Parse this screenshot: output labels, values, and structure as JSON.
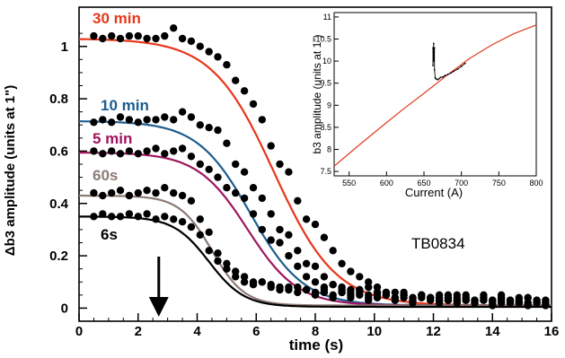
{
  "colors": {
    "series_30min": "#e8371a",
    "series_10min": "#1c5d8f",
    "series_5min": "#a0145e",
    "series_60s": "#8c7b74",
    "series_6s": "#000000",
    "markers": "#000000",
    "inset_line": "#e23a1e"
  },
  "chart_data": [
    {
      "type": "scatter",
      "title": "",
      "xlabel": "time (s)",
      "ylabel": "Δb3 amplitude (units at 1\")",
      "xlim": [
        0,
        16
      ],
      "ylim": [
        -0.05,
        1.15
      ],
      "x_ticks": [
        0,
        2,
        4,
        6,
        8,
        10,
        12,
        14,
        16
      ],
      "y_ticks": [
        0,
        0.2,
        0.4,
        0.6,
        0.8,
        1
      ],
      "annotation": "TB0834",
      "arrow_at_x": 2.7,
      "grid": false,
      "series": [
        {
          "name": "30 min",
          "color_key": "series_30min",
          "plateau": 1.03,
          "t_mid": 6.6,
          "width": 1.05,
          "floor": 0.01,
          "x": [
            0.5,
            0.8,
            1.1,
            1.4,
            1.7,
            2.0,
            2.3,
            2.6,
            2.9,
            3.2,
            3.5,
            3.8,
            4.1,
            4.4,
            4.7,
            5.0,
            5.3,
            5.6,
            5.9,
            6.2,
            6.5,
            6.8,
            7.1,
            7.4,
            7.7,
            8.0,
            8.3,
            8.6,
            8.9,
            9.2,
            9.5,
            9.8,
            10.1,
            10.4,
            10.7,
            11.0,
            11.3,
            11.6,
            11.9,
            12.2,
            12.5,
            12.8,
            13.1,
            13.4,
            13.7,
            14.0,
            14.3,
            14.6,
            14.9,
            15.2,
            15.5,
            15.8
          ],
          "y": [
            1.04,
            1.03,
            1.04,
            1.03,
            1.04,
            1.04,
            1.03,
            1.03,
            1.04,
            1.07,
            1.03,
            1.02,
            1.0,
            0.98,
            0.96,
            0.93,
            0.87,
            0.83,
            0.78,
            0.72,
            0.62,
            0.55,
            0.52,
            0.41,
            0.34,
            0.32,
            0.27,
            0.22,
            0.17,
            0.14,
            0.12,
            0.1,
            0.08,
            0.06,
            0.06,
            0.05,
            0.04,
            0.05,
            0.04,
            0.03,
            0.03,
            0.05,
            0.04,
            0.02,
            0.03,
            0.02,
            0.04,
            0.02,
            0.02,
            0.02,
            0.03,
            0.02
          ]
        },
        {
          "name": "10 min",
          "color_key": "series_10min",
          "plateau": 0.715,
          "t_mid": 5.8,
          "width": 0.9,
          "floor": 0.01,
          "x": [
            0.5,
            0.8,
            1.1,
            1.4,
            1.7,
            2.0,
            2.3,
            2.6,
            2.9,
            3.2,
            3.5,
            3.8,
            4.1,
            4.4,
            4.7,
            5.0,
            5.3,
            5.6,
            5.9,
            6.2,
            6.5,
            6.8,
            7.1,
            7.4,
            7.7,
            8.0,
            8.3,
            8.6,
            8.9,
            9.2,
            9.5,
            9.8,
            10.1,
            10.4,
            10.7,
            11.0,
            11.3,
            11.6,
            11.9,
            12.2,
            12.5,
            12.8,
            13.1,
            13.4,
            13.7,
            14.0,
            14.3,
            14.6,
            14.9,
            15.2,
            15.5,
            15.8
          ],
          "y": [
            0.71,
            0.72,
            0.71,
            0.73,
            0.72,
            0.71,
            0.72,
            0.72,
            0.73,
            0.72,
            0.75,
            0.73,
            0.7,
            0.69,
            0.68,
            0.63,
            0.55,
            0.52,
            0.46,
            0.42,
            0.36,
            0.3,
            0.28,
            0.22,
            0.17,
            0.16,
            0.12,
            0.09,
            0.08,
            0.07,
            0.06,
            0.05,
            0.06,
            0.05,
            0.04,
            0.05,
            0.03,
            0.05,
            0.04,
            0.05,
            0.04,
            0.03,
            0.03,
            0.03,
            0.04,
            0.03,
            0.04,
            0.03,
            0.04,
            0.02,
            0.03,
            0.03
          ]
        },
        {
          "name": "5 min",
          "color_key": "series_5min",
          "plateau": 0.595,
          "t_mid": 5.7,
          "width": 0.85,
          "floor": 0.01,
          "x": [
            0.5,
            0.8,
            1.1,
            1.4,
            1.7,
            2.0,
            2.3,
            2.6,
            2.9,
            3.2,
            3.5,
            3.8,
            4.1,
            4.4,
            4.7,
            5.0,
            5.3,
            5.6,
            5.9,
            6.2,
            6.5,
            6.8,
            7.1,
            7.4,
            7.7,
            8.0,
            8.3,
            8.6,
            8.9,
            9.2,
            9.5,
            9.8,
            10.1,
            10.4,
            10.7,
            11.0,
            11.3,
            11.6,
            11.9,
            12.2,
            12.5,
            12.8,
            13.1,
            13.4,
            13.7,
            14.0,
            14.3,
            14.6,
            14.9,
            15.2,
            15.5,
            15.8
          ],
          "y": [
            0.6,
            0.59,
            0.6,
            0.59,
            0.6,
            0.59,
            0.6,
            0.61,
            0.59,
            0.6,
            0.61,
            0.58,
            0.55,
            0.53,
            0.5,
            0.46,
            0.44,
            0.42,
            0.36,
            0.3,
            0.26,
            0.25,
            0.2,
            0.16,
            0.12,
            0.1,
            0.08,
            0.09,
            0.07,
            0.06,
            0.07,
            0.08,
            0.05,
            0.06,
            0.04,
            0.06,
            0.04,
            0.05,
            0.04,
            0.03,
            0.05,
            0.03,
            0.04,
            0.03,
            0.05,
            0.03,
            0.02,
            0.03,
            0.02,
            0.04,
            0.02,
            0.03
          ]
        },
        {
          "name": "60s",
          "color_key": "series_60s",
          "plateau": 0.43,
          "t_mid": 4.5,
          "width": 0.55,
          "floor": 0.01,
          "x": [
            0.5,
            0.8,
            1.1,
            1.4,
            1.7,
            2.0,
            2.3,
            2.6,
            2.9,
            3.2,
            3.5,
            3.8,
            4.1,
            4.4,
            4.7,
            5.0,
            5.3,
            5.6,
            5.9,
            6.2,
            6.5,
            6.8,
            7.1,
            7.4,
            7.7,
            8.0,
            8.3,
            8.6,
            8.9,
            9.2,
            9.5,
            9.8,
            10.1,
            10.4,
            10.7,
            11.0,
            11.3,
            11.6,
            11.9,
            12.2,
            12.5,
            12.8,
            13.1,
            13.4,
            13.7,
            14.0,
            14.3,
            14.6,
            14.9,
            15.2,
            15.5,
            15.8
          ],
          "y": [
            0.44,
            0.43,
            0.44,
            0.45,
            0.43,
            0.44,
            0.45,
            0.44,
            0.46,
            0.44,
            0.43,
            0.41,
            0.34,
            0.29,
            0.21,
            0.17,
            0.14,
            0.12,
            0.1,
            0.1,
            0.09,
            0.08,
            0.07,
            0.08,
            0.07,
            0.06,
            0.07,
            0.05,
            0.06,
            0.05,
            0.07,
            0.04,
            0.06,
            0.05,
            0.04,
            0.05,
            0.03,
            0.05,
            0.04,
            0.04,
            0.03,
            0.04,
            0.05,
            0.03,
            0.04,
            0.03,
            0.05,
            0.03,
            0.03,
            0.04,
            0.02,
            0.02
          ]
        },
        {
          "name": "6s",
          "color_key": "series_6s",
          "plateau": 0.35,
          "t_mid": 4.4,
          "width": 0.6,
          "floor": 0.005,
          "x": [
            0.5,
            0.8,
            1.1,
            1.4,
            1.7,
            2.0,
            2.3,
            2.6,
            2.9,
            3.2,
            3.5,
            3.8,
            4.1,
            4.4,
            4.7,
            5.0,
            5.3,
            5.6,
            5.9,
            6.2,
            6.5,
            6.8,
            7.1,
            7.4,
            7.7,
            8.0,
            8.3,
            8.6,
            8.9,
            9.2,
            9.5,
            9.8,
            10.1,
            10.4,
            10.7,
            11.0,
            11.3,
            11.6,
            11.9,
            12.2,
            12.5,
            12.8,
            13.1,
            13.4,
            13.7,
            14.0,
            14.3,
            14.6,
            14.9,
            15.2,
            15.5,
            15.8
          ],
          "y": [
            0.35,
            0.36,
            0.35,
            0.35,
            0.36,
            0.35,
            0.36,
            0.34,
            0.35,
            0.34,
            0.33,
            0.31,
            0.28,
            0.22,
            0.18,
            0.15,
            0.12,
            0.1,
            0.09,
            0.1,
            0.08,
            0.07,
            0.08,
            0.06,
            0.07,
            0.05,
            0.06,
            0.04,
            0.06,
            0.04,
            0.05,
            0.03,
            0.04,
            0.05,
            0.03,
            0.04,
            0.02,
            0.04,
            0.03,
            0.02,
            0.04,
            0.02,
            0.03,
            0.02,
            0.03,
            0.01,
            0.03,
            0.02,
            0.02,
            0.01,
            0.02,
            0.01
          ]
        }
      ]
    },
    {
      "type": "line",
      "title": "",
      "xlabel": "Current (A)",
      "ylabel": "b3 amplitude (units at 1\")",
      "xlim": [
        530,
        800
      ],
      "ylim": [
        7.4,
        11.1
      ],
      "x_ticks": [
        550,
        600,
        650,
        700,
        750,
        800
      ],
      "y_ticks": [
        7.5,
        8,
        8.5,
        9,
        9.5,
        10,
        10.5,
        11
      ],
      "grid": false,
      "series": [
        {
          "color_key": "inset_line",
          "x": [
            530,
            560,
            590,
            620,
            650,
            680,
            710,
            740,
            770,
            800
          ],
          "y": [
            7.62,
            8.05,
            8.47,
            8.88,
            9.27,
            9.67,
            10.05,
            10.36,
            10.62,
            10.82
          ]
        },
        {
          "color_key": "markers",
          "x": [
            662,
            662,
            663,
            663,
            664,
            664,
            665,
            666,
            668,
            670,
            672,
            675,
            678,
            682,
            686,
            690,
            695,
            700,
            705
          ],
          "y": [
            10.3,
            9.9,
            10.4,
            10.0,
            10.3,
            9.8,
            9.62,
            9.6,
            9.58,
            9.6,
            9.63,
            9.64,
            9.67,
            9.7,
            9.73,
            9.77,
            9.82,
            9.88,
            9.95
          ]
        }
      ]
    }
  ]
}
